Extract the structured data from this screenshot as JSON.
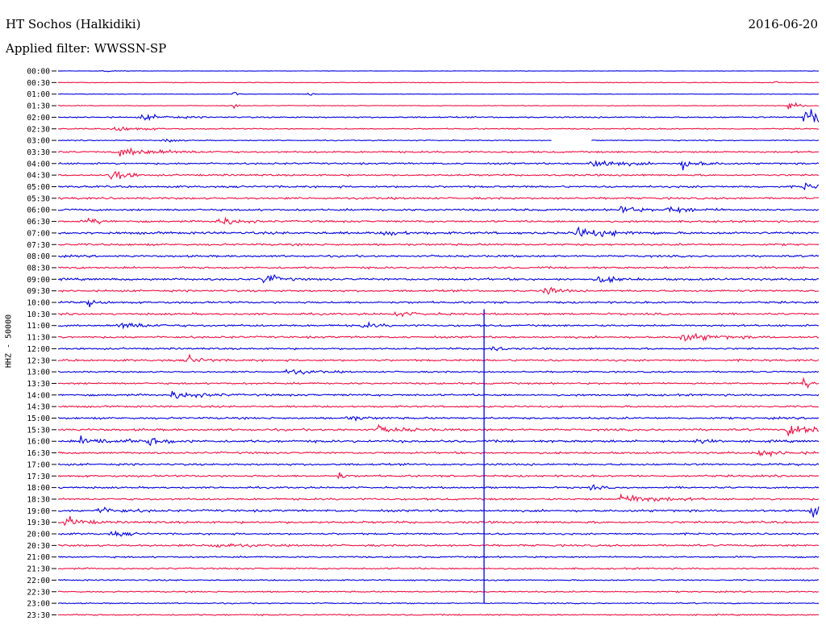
{
  "header": {
    "station": "HT Sochos (Halkidiki)",
    "date": "2016-06-20",
    "filter": "Applied filter: WWSSN-SP",
    "channel": "HHZ - 50000"
  },
  "chart_data": {
    "type": "line",
    "title": "HT Sochos (Halkidiki)",
    "subtitle": "Applied filter: WWSSN-SP",
    "ylabel": "HHZ - 50000",
    "xlabel": "",
    "grid": false,
    "colors": {
      "even_trace": "#0000dd",
      "odd_trace": "#ee1144"
    },
    "row_labels": [
      "00:00",
      "00:30",
      "01:00",
      "01:30",
      "02:00",
      "02:30",
      "03:00",
      "03:30",
      "04:00",
      "04:30",
      "05:00",
      "05:30",
      "06:00",
      "06:30",
      "07:00",
      "07:30",
      "08:00",
      "08:30",
      "09:00",
      "09:30",
      "10:00",
      "10:30",
      "11:00",
      "11:30",
      "12:00",
      "12:30",
      "13:00",
      "13:30",
      "14:00",
      "14:30",
      "15:00",
      "15:30",
      "16:00",
      "16:30",
      "17:00",
      "17:30",
      "18:00",
      "18:30",
      "19:00",
      "19:30",
      "20:00",
      "20:30",
      "21:00",
      "21:30",
      "22:00",
      "22:30",
      "23:00",
      "23:30"
    ],
    "row_noise_level": [
      0.2,
      0.35,
      0.25,
      0.35,
      0.7,
      0.6,
      0.5,
      0.9,
      0.9,
      0.9,
      1.0,
      1.0,
      1.0,
      1.0,
      1.2,
      1.0,
      1.0,
      1.0,
      1.1,
      1.0,
      1.0,
      1.0,
      1.0,
      1.0,
      0.9,
      1.0,
      0.8,
      0.9,
      1.0,
      0.9,
      1.0,
      1.1,
      1.2,
      1.0,
      1.0,
      1.0,
      0.9,
      1.0,
      1.1,
      1.1,
      0.9,
      1.0,
      0.8,
      0.8,
      0.7,
      0.7,
      0.6,
      0.7
    ],
    "events": [
      {
        "row": 0,
        "t": 0.06,
        "amp": 0.6,
        "len": 0.02
      },
      {
        "row": 1,
        "t": 0.94,
        "amp": 1.5,
        "len": 0.01
      },
      {
        "row": 2,
        "t": 0.23,
        "amp": 2.5,
        "len": 0.005
      },
      {
        "row": 2,
        "t": 0.33,
        "amp": 1.5,
        "len": 0.005
      },
      {
        "row": 3,
        "t": 0.23,
        "amp": 3.0,
        "len": 0.004
      },
      {
        "row": 3,
        "t": 0.96,
        "amp": 4.0,
        "len": 0.01
      },
      {
        "row": 4,
        "t": 0.98,
        "amp": 8.0,
        "len": 0.05
      },
      {
        "row": 4,
        "t": 0.11,
        "amp": 2.0,
        "len": 0.03
      },
      {
        "row": 5,
        "t": 0.07,
        "amp": 2.0,
        "len": 0.03
      },
      {
        "row": 6,
        "t": 0.14,
        "amp": 2.0,
        "len": 0.01
      },
      {
        "row": 7,
        "t": 0.08,
        "amp": 3.0,
        "len": 0.05
      },
      {
        "row": 8,
        "t": 0.7,
        "amp": 4.0,
        "len": 0.03
      },
      {
        "row": 8,
        "t": 0.82,
        "amp": 4.0,
        "len": 0.02
      },
      {
        "row": 9,
        "t": 0.07,
        "amp": 7.0,
        "len": 0.015
      },
      {
        "row": 10,
        "t": 0.98,
        "amp": 2.5,
        "len": 0.02
      },
      {
        "row": 12,
        "t": 0.74,
        "amp": 4.0,
        "len": 0.015
      },
      {
        "row": 12,
        "t": 0.8,
        "amp": 2.5,
        "len": 0.03
      },
      {
        "row": 13,
        "t": 0.21,
        "amp": 4.0,
        "len": 0.02
      },
      {
        "row": 13,
        "t": 0.04,
        "amp": 2.0,
        "len": 0.02
      },
      {
        "row": 14,
        "t": 0.68,
        "amp": 4.0,
        "len": 0.04
      },
      {
        "row": 14,
        "t": 0.43,
        "amp": 2.0,
        "len": 0.02
      },
      {
        "row": 18,
        "t": 0.27,
        "amp": 5.0,
        "len": 0.015
      },
      {
        "row": 18,
        "t": 0.71,
        "amp": 3.0,
        "len": 0.02
      },
      {
        "row": 19,
        "t": 0.64,
        "amp": 3.5,
        "len": 0.015
      },
      {
        "row": 20,
        "t": 0.04,
        "amp": 3.0,
        "len": 0.01
      },
      {
        "row": 21,
        "t": 0.44,
        "amp": 1.5,
        "len": 0.03
      },
      {
        "row": 22,
        "t": 0.08,
        "amp": 3.0,
        "len": 0.03
      },
      {
        "row": 22,
        "t": 0.4,
        "amp": 2.0,
        "len": 0.02
      },
      {
        "row": 23,
        "t": 0.82,
        "amp": 3.0,
        "len": 0.04
      },
      {
        "row": 24,
        "t": 0.57,
        "amp": 3.0,
        "len": 0.01
      },
      {
        "row": 25,
        "t": 0.17,
        "amp": 4.0,
        "len": 0.015
      },
      {
        "row": 26,
        "t": 0.3,
        "amp": 2.0,
        "len": 0.03
      },
      {
        "row": 27,
        "t": 0.98,
        "amp": 4.0,
        "len": 0.01
      },
      {
        "row": 28,
        "t": 0.15,
        "amp": 3.0,
        "len": 0.03
      },
      {
        "row": 30,
        "t": 0.38,
        "amp": 2.0,
        "len": 0.02
      },
      {
        "row": 31,
        "t": 0.96,
        "amp": 4.0,
        "len": 0.05
      },
      {
        "row": 31,
        "t": 0.42,
        "amp": 2.5,
        "len": 0.03
      },
      {
        "row": 32,
        "t": 0.03,
        "amp": 3.0,
        "len": 0.04
      },
      {
        "row": 32,
        "t": 0.12,
        "amp": 3.0,
        "len": 0.02
      },
      {
        "row": 32,
        "t": 0.84,
        "amp": 2.5,
        "len": 0.01
      },
      {
        "row": 33,
        "t": 0.92,
        "amp": 2.5,
        "len": 0.03
      },
      {
        "row": 35,
        "t": 0.37,
        "amp": 3.0,
        "len": 0.005
      },
      {
        "row": 36,
        "t": 0.7,
        "amp": 2.0,
        "len": 0.01
      },
      {
        "row": 37,
        "t": 0.74,
        "amp": 4.0,
        "len": 0.04
      },
      {
        "row": 38,
        "t": 0.99,
        "amp": 4.5,
        "len": 0.02
      },
      {
        "row": 38,
        "t": 0.05,
        "amp": 2.5,
        "len": 0.03
      },
      {
        "row": 39,
        "t": 0.01,
        "amp": 4.0,
        "len": 0.02
      },
      {
        "row": 40,
        "t": 0.07,
        "amp": 2.0,
        "len": 0.02
      },
      {
        "row": 41,
        "t": 0.2,
        "amp": 2.0,
        "len": 0.03
      }
    ],
    "gaps": [
      {
        "row": 6,
        "from": 0.65,
        "to": 0.7
      }
    ],
    "marker_line": {
      "from_row": 21,
      "to_row": 46,
      "t": 0.56
    }
  }
}
